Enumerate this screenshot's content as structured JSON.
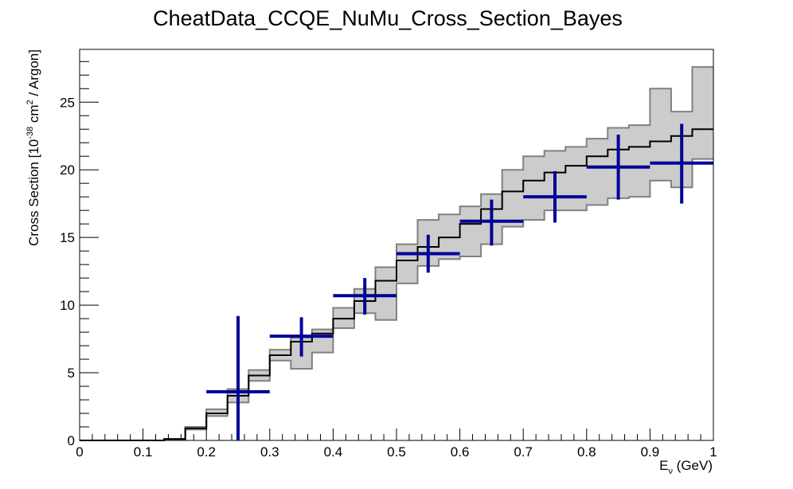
{
  "chart_data": {
    "type": "line",
    "title": "CheatData_CCQE_NuMu_Cross_Section_Bayes",
    "xlabel": {
      "main": "E",
      "sub": "ν",
      "unit": " (GeV)"
    },
    "ylabel": {
      "pre": "Cross Section [10",
      "exp": "-38",
      "mid": " cm",
      "exp2": "2",
      "post": " / Argon]"
    },
    "xlim": [
      0,
      1
    ],
    "ylim": [
      0,
      28.9
    ],
    "x_ticks": [
      0,
      0.1,
      0.2,
      0.3,
      0.4,
      0.5,
      0.6,
      0.7,
      0.8,
      0.9,
      1
    ],
    "x_tick_labels": [
      "0",
      "0.1",
      "0.2",
      "0.3",
      "0.4",
      "0.5",
      "0.6",
      "0.7",
      "0.8",
      "0.9",
      "1"
    ],
    "y_ticks": [
      0,
      5,
      10,
      15,
      20,
      25
    ],
    "y_tick_labels": [
      "0",
      "5",
      "10",
      "15",
      "20",
      "25"
    ],
    "colors": {
      "band_fill": "#cccccc",
      "band_edge": "#808080",
      "model_line": "#000000",
      "data": "#000099"
    },
    "series": [
      {
        "kind": "step",
        "bin_edges": [
          0,
          0.0333,
          0.0667,
          0.1,
          0.1333,
          0.1667,
          0.2,
          0.2333,
          0.2667,
          0.3,
          0.3333,
          0.3667,
          0.4,
          0.4333,
          0.4667,
          0.5,
          0.5333,
          0.5667,
          0.6,
          0.6333,
          0.6667,
          0.7,
          0.7333,
          0.7667,
          0.8,
          0.8333,
          0.8667,
          0.9,
          0.9333,
          0.9667,
          1
        ],
        "values": [
          0,
          0,
          0,
          0,
          0.1,
          0.9,
          2.0,
          3.3,
          4.8,
          6.3,
          7.3,
          7.9,
          9.0,
          10.3,
          11.8,
          13.3,
          14.3,
          15.0,
          16.0,
          17.1,
          18.4,
          19.2,
          19.8,
          20.3,
          21.0,
          21.5,
          21.7,
          22.1,
          22.5,
          23.0
        ],
        "upper": [
          0,
          0,
          0,
          0,
          0.1,
          1.0,
          2.3,
          3.8,
          5.2,
          6.7,
          7.6,
          8.2,
          9.8,
          11.2,
          12.8,
          14.5,
          16.3,
          16.7,
          17.3,
          18.2,
          20.0,
          21.0,
          21.4,
          21.7,
          22.3,
          23.1,
          23.3,
          26.0,
          24.3,
          24.6
        ],
        "lower": [
          0,
          0,
          0,
          0,
          0.1,
          0.8,
          1.8,
          2.8,
          4.4,
          5.9,
          5.3,
          6.5,
          8.3,
          9.4,
          8.9,
          11.6,
          12.9,
          13.4,
          13.6,
          14.5,
          15.8,
          16.3,
          17.0,
          17.0,
          17.4,
          17.9,
          18.0,
          19.2,
          18.7,
          18.9
        ],
        "last_bin_upper": 27.6,
        "last_bin_lower": 20.8
      },
      {
        "kind": "points_with_errors",
        "x": [
          0.25,
          0.35,
          0.45,
          0.55,
          0.65,
          0.75,
          0.85,
          0.95
        ],
        "xerr": [
          0.05,
          0.05,
          0.05,
          0.05,
          0.05,
          0.05,
          0.05,
          0.05
        ],
        "y": [
          3.6,
          7.7,
          10.7,
          13.8,
          16.2,
          18.0,
          20.2,
          20.5
        ],
        "yerr_low": [
          3.6,
          1.5,
          1.4,
          1.4,
          1.8,
          1.9,
          2.4,
          3.0
        ],
        "yerr_high": [
          5.6,
          1.4,
          1.3,
          1.4,
          1.6,
          1.9,
          2.4,
          2.9
        ]
      }
    ]
  }
}
